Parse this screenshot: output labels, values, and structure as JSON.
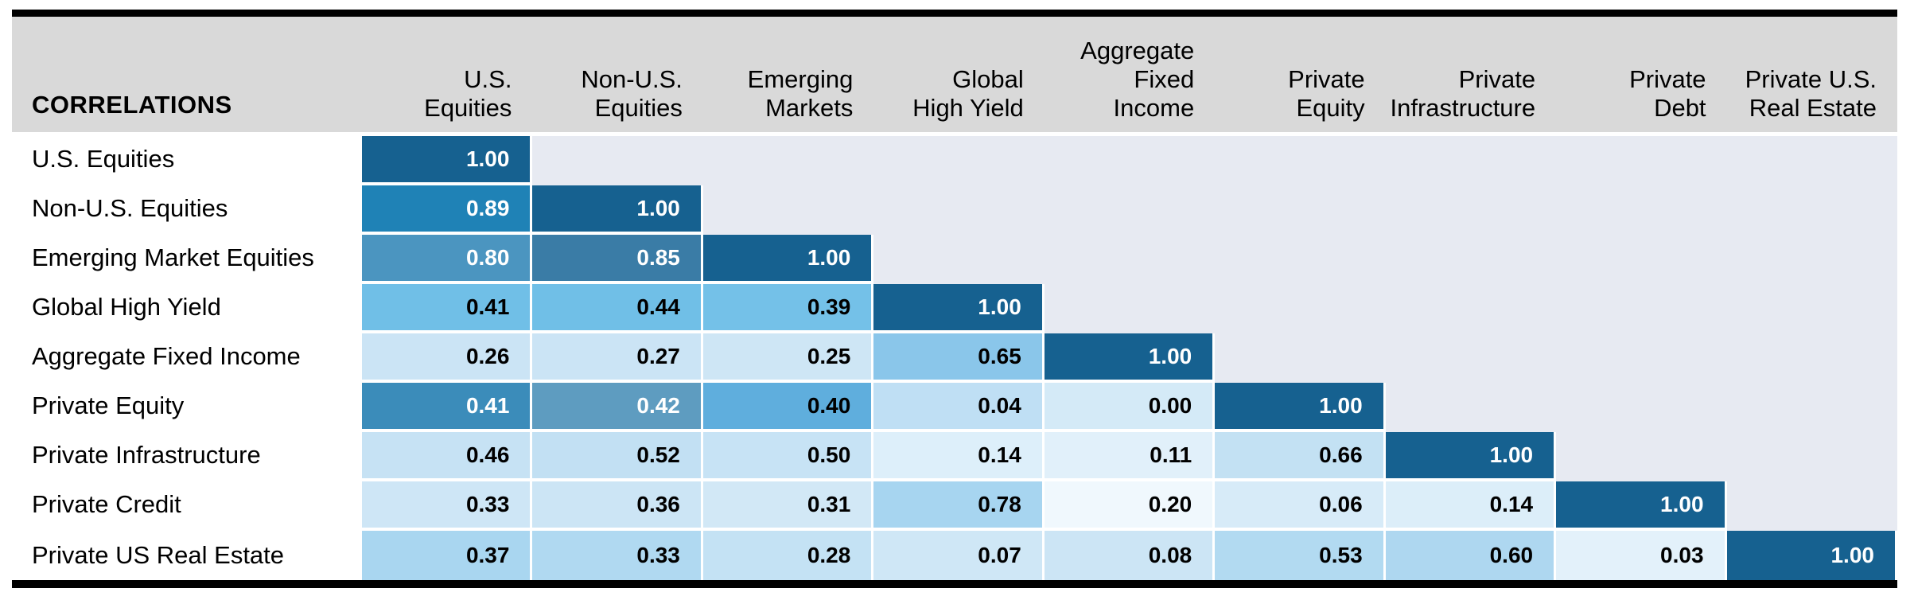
{
  "title": "CORRELATIONS",
  "colors": {
    "header_bg": "#D9D9D9",
    "upper_triangle_bg": "#E7EAF2",
    "diagonal": "#166190",
    "rule": "#000000",
    "cell_gap": "#FFFFFF"
  },
  "chart_data": {
    "type": "heatmap",
    "title": "CORRELATIONS",
    "layout": "lower-triangular correlation matrix, diagonal = 1.00",
    "columns": [
      "U.S.\nEquities",
      "Non-U.S.\nEquities",
      "Emerging\nMarkets",
      "Global\nHigh Yield",
      "Aggregate\nFixed\nIncome",
      "Private\nEquity",
      "Private\nInfrastructure",
      "Private\nDebt",
      "Private U.S.\nReal Estate"
    ],
    "rows": [
      {
        "label": "U.S. Equities",
        "cells": [
          {
            "v": "1.00",
            "bg": "#166190",
            "fg": "#FFFFFF"
          }
        ]
      },
      {
        "label": "Non-U.S. Equities",
        "cells": [
          {
            "v": "0.89",
            "bg": "#1F82B6",
            "fg": "#FFFFFF"
          },
          {
            "v": "1.00",
            "bg": "#166190",
            "fg": "#FFFFFF"
          }
        ]
      },
      {
        "label": "Emerging Market Equities",
        "cells": [
          {
            "v": "0.80",
            "bg": "#4B95C0",
            "fg": "#FFFFFF"
          },
          {
            "v": "0.85",
            "bg": "#3A7CA6",
            "fg": "#FFFFFF"
          },
          {
            "v": "1.00",
            "bg": "#166190",
            "fg": "#FFFFFF"
          }
        ]
      },
      {
        "label": "Global High Yield",
        "cells": [
          {
            "v": "0.41",
            "bg": "#70BFE7"
          },
          {
            "v": "0.44",
            "bg": "#70BFE7"
          },
          {
            "v": "0.39",
            "bg": "#74C1E8"
          },
          {
            "v": "1.00",
            "bg": "#166190",
            "fg": "#FFFFFF"
          }
        ]
      },
      {
        "label": "Aggregate Fixed Income",
        "cells": [
          {
            "v": "0.26",
            "bg": "#CBE4F5"
          },
          {
            "v": "0.27",
            "bg": "#CBE4F5"
          },
          {
            "v": "0.25",
            "bg": "#CEE6F5"
          },
          {
            "v": "0.65",
            "bg": "#8AC6EA"
          },
          {
            "v": "1.00",
            "bg": "#166190",
            "fg": "#FFFFFF"
          }
        ]
      },
      {
        "label": "Private Equity",
        "cells": [
          {
            "v": "0.41",
            "bg": "#3B8CBA",
            "fg": "#FFFFFF"
          },
          {
            "v": "0.42",
            "bg": "#5E9CC0",
            "fg": "#FFFFFF"
          },
          {
            "v": "0.40",
            "bg": "#5FAEDD"
          },
          {
            "v": "0.04",
            "bg": "#BFDFF4"
          },
          {
            "v": "0.00",
            "bg": "#D4EAF7"
          },
          {
            "v": "1.00",
            "bg": "#166190",
            "fg": "#FFFFFF"
          }
        ]
      },
      {
        "label": "Private Infrastructure",
        "cells": [
          {
            "v": "0.46",
            "bg": "#C6E2F4"
          },
          {
            "v": "0.52",
            "bg": "#C2E0F3"
          },
          {
            "v": "0.50",
            "bg": "#C7E3F5"
          },
          {
            "v": "0.14",
            "bg": "#DDEFFA"
          },
          {
            "v": "0.11",
            "bg": "#E1F0FA"
          },
          {
            "v": "0.66",
            "bg": "#C3E1F3"
          },
          {
            "v": "1.00",
            "bg": "#166190",
            "fg": "#FFFFFF"
          }
        ]
      },
      {
        "label": "Private Credit",
        "cells": [
          {
            "v": "0.33",
            "bg": "#CEE6F6"
          },
          {
            "v": "0.36",
            "bg": "#CCE5F5"
          },
          {
            "v": "0.31",
            "bg": "#D2E8F6"
          },
          {
            "v": "0.78",
            "bg": "#A7D5F0"
          },
          {
            "v": "0.20",
            "bg": "#F0F8FD"
          },
          {
            "v": "0.06",
            "bg": "#D7EBF8"
          },
          {
            "v": "0.14",
            "bg": "#DCEEF9"
          },
          {
            "v": "1.00",
            "bg": "#166190",
            "fg": "#FFFFFF"
          }
        ]
      },
      {
        "label": "Private US Real Estate",
        "cells": [
          {
            "v": "0.37",
            "bg": "#A9D6F0"
          },
          {
            "v": "0.33",
            "bg": "#B0D9F1"
          },
          {
            "v": "0.28",
            "bg": "#C4E2F4"
          },
          {
            "v": "0.07",
            "bg": "#CFE7F6"
          },
          {
            "v": "0.08",
            "bg": "#CCE5F5"
          },
          {
            "v": "0.53",
            "bg": "#B2DAF1"
          },
          {
            "v": "0.60",
            "bg": "#AED7F0"
          },
          {
            "v": "0.03",
            "bg": "#E3F1FA"
          },
          {
            "v": "1.00",
            "bg": "#166190",
            "fg": "#FFFFFF"
          }
        ]
      }
    ]
  }
}
